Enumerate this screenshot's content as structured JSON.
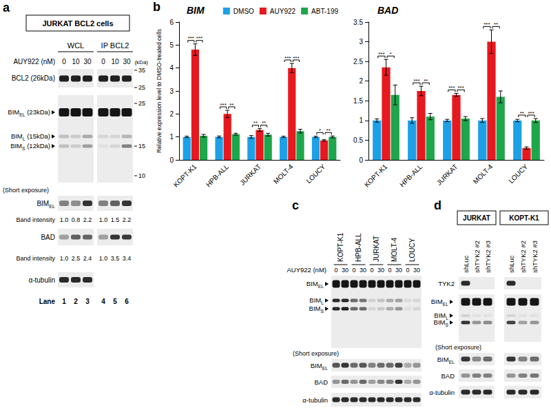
{
  "chart_data": [
    {
      "type": "bar",
      "title": "BIM",
      "ylabel": "Relative expression level to DMSO-treated cells",
      "categories": [
        "KOPT-K1",
        "HPB-ALL",
        "JURKAT",
        "MOLT-4",
        "LOUCY"
      ],
      "series": [
        {
          "name": "DMSO",
          "color": "#1da1e6",
          "values": [
            1,
            1,
            1,
            1,
            1
          ],
          "errors": [
            0.03,
            0.04,
            0.06,
            0.03,
            0.03
          ]
        },
        {
          "name": "AUY922",
          "color": "#e6191f",
          "values": [
            4.8,
            2.0,
            1.3,
            4.0,
            0.85
          ],
          "errors": [
            0.25,
            0.16,
            0.06,
            0.2,
            0.03
          ]
        },
        {
          "name": "ABT-199",
          "color": "#1ea64b",
          "values": [
            1.05,
            1.12,
            1.1,
            1.25,
            1.0
          ],
          "errors": [
            0.06,
            0.04,
            0.06,
            0.08,
            0.04
          ]
        }
      ],
      "ylim": [
        0,
        6
      ],
      "yticks": [
        0,
        1,
        2,
        3,
        4,
        5,
        6
      ],
      "grid": false,
      "legend": "top",
      "annotations": [
        {
          "category": "KOPT-K1",
          "from": "DMSO",
          "to": "AUY922",
          "text": "***"
        },
        {
          "category": "KOPT-K1",
          "from": "AUY922",
          "to": "ABT-199",
          "text": "***"
        },
        {
          "category": "HPB-ALL",
          "from": "DMSO",
          "to": "AUY922",
          "text": "***"
        },
        {
          "category": "HPB-ALL",
          "from": "AUY922",
          "to": "ABT-199",
          "text": "**"
        },
        {
          "category": "JURKAT",
          "from": "DMSO",
          "to": "AUY922",
          "text": "**"
        },
        {
          "category": "JURKAT",
          "from": "AUY922",
          "to": "ABT-199",
          "text": "**"
        },
        {
          "category": "MOLT-4",
          "from": "DMSO",
          "to": "AUY922",
          "text": "***"
        },
        {
          "category": "MOLT-4",
          "from": "AUY922",
          "to": "ABT-199",
          "text": "***"
        },
        {
          "category": "LOUCY",
          "from": "DMSO",
          "to": "AUY922",
          "text": "*"
        },
        {
          "category": "LOUCY",
          "from": "AUY922",
          "to": "ABT-199",
          "text": "**"
        }
      ]
    },
    {
      "type": "bar",
      "title": "BAD",
      "categories": [
        "KOPT-K1",
        "HPB-ALL",
        "JURKAT",
        "MOLT-4",
        "LOUCY"
      ],
      "series": [
        {
          "name": "DMSO",
          "color": "#1da1e6",
          "values": [
            1,
            1,
            1,
            1,
            1
          ],
          "errors": [
            0.04,
            0.07,
            0.03,
            0.05,
            0.03
          ]
        },
        {
          "name": "AUY922",
          "color": "#e6191f",
          "values": [
            2.35,
            1.75,
            1.65,
            3.0,
            0.3
          ],
          "errors": [
            0.2,
            0.12,
            0.04,
            0.3,
            0.03
          ]
        },
        {
          "name": "ABT-199",
          "color": "#1ea64b",
          "values": [
            1.65,
            1.1,
            1.05,
            1.6,
            1.0
          ],
          "errors": [
            0.25,
            0.08,
            0.05,
            0.15,
            0.05
          ]
        }
      ],
      "ylim": [
        0,
        3.5
      ],
      "yticks": [
        0,
        0.5,
        1,
        1.5,
        2,
        2.5,
        3,
        3.5
      ],
      "grid": false,
      "annotations": [
        {
          "category": "KOPT-K1",
          "from": "DMSO",
          "to": "AUY922",
          "text": "***"
        },
        {
          "category": "KOPT-K1",
          "from": "AUY922",
          "to": "ABT-199",
          "text": "*"
        },
        {
          "category": "HPB-ALL",
          "from": "DMSO",
          "to": "AUY922",
          "text": "***"
        },
        {
          "category": "HPB-ALL",
          "from": "AUY922",
          "to": "ABT-199",
          "text": "**"
        },
        {
          "category": "JURKAT",
          "from": "DMSO",
          "to": "AUY922",
          "text": "***"
        },
        {
          "category": "JURKAT",
          "from": "AUY922",
          "to": "ABT-199",
          "text": "***"
        },
        {
          "category": "MOLT-4",
          "from": "DMSO",
          "to": "AUY922",
          "text": "***"
        },
        {
          "category": "MOLT-4",
          "from": "AUY922",
          "to": "ABT-199",
          "text": "**"
        },
        {
          "category": "LOUCY",
          "from": "DMSO",
          "to": "AUY922",
          "text": "**"
        },
        {
          "category": "LOUCY",
          "from": "AUY922",
          "to": "ABT-199",
          "text": "***"
        }
      ]
    }
  ],
  "panels": {
    "a": {
      "letter": "a",
      "title": "JURKAT BCL2 cells",
      "groups": [
        "WCL",
        "IP BCL2"
      ],
      "treatment": "AUY922 (nM)",
      "doses": [
        0,
        10,
        30
      ],
      "kda": "(kDa)",
      "bcl2": {
        "label": [
          "BCL2",
          "",
          " (26kDa)"
        ],
        "markers": [
          35,
          25
        ]
      },
      "bim": {
        "bands": [
          [
            "BIM",
            "EL",
            " (23kDa)"
          ],
          [
            "BIM",
            "L",
            " (15kDa)"
          ],
          [
            "BIM",
            "S",
            " (12kDa)"
          ]
        ],
        "markers": [
          25,
          15,
          10
        ]
      },
      "short_exposure": "(Short exposure)",
      "bim_short": {
        "label": [
          "BIM",
          "EL",
          ""
        ],
        "intensity_label": "Band intensity",
        "intensity": [
          "1.0",
          "0.8",
          "2.2",
          "1.0",
          "1.5",
          "2.2"
        ]
      },
      "bad": {
        "label": [
          "BAD",
          "",
          ""
        ],
        "intensity_label": "Band intensity",
        "intensity": [
          "1.0",
          "2.5",
          "2.4",
          "1.0",
          "3.5",
          "3.4"
        ]
      },
      "tubulin": "α-tubulin",
      "lane_label": "Lane",
      "lanes": [
        1,
        2,
        3,
        4,
        5,
        6
      ]
    },
    "b": {
      "letter": "b"
    },
    "c": {
      "letter": "c",
      "cell_lines": [
        "KOPT-K1",
        "HPB-ALL",
        "JURKAT",
        "MOLT-4",
        "LOUCY"
      ],
      "treatment": "AUY922 (nM)",
      "doses": [
        0,
        30
      ],
      "bim": [
        [
          "BIM",
          "EL"
        ],
        [
          "BIM",
          "L"
        ],
        [
          "BIM",
          "S"
        ]
      ],
      "short_exposure": "(Short exposure)",
      "bim_short": [
        "BIM",
        "EL"
      ],
      "bad": "BAD",
      "tubulin": "α-tubulin"
    },
    "d": {
      "letter": "d",
      "cell_lines": [
        "JURKAT",
        "KOPT-K1"
      ],
      "constructs": [
        "shLuc",
        "shTYK2 #2",
        "shTYK2 #3"
      ],
      "tyk2": "TYK2",
      "bim": [
        [
          "BIM",
          "EL"
        ],
        [
          "BIM",
          "L"
        ],
        [
          "BIM",
          "S"
        ]
      ],
      "short_exposure": "(Short exposure)",
      "bim_short": [
        "BIM",
        "EL"
      ],
      "bad": "BAD",
      "tubulin": "α-tubulin"
    }
  }
}
